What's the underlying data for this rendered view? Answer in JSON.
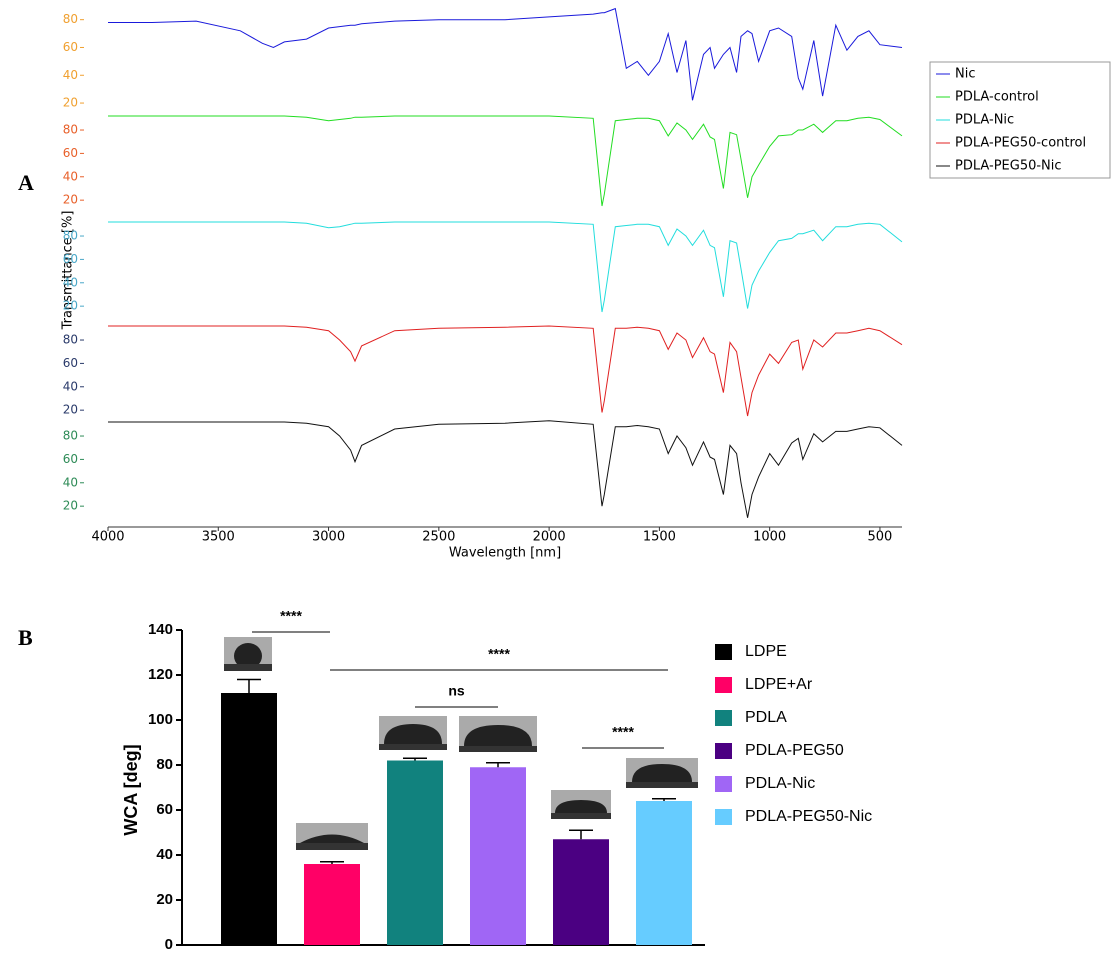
{
  "chart_data": [
    {
      "type": "line",
      "panel_label": "A",
      "xlabel": "Wavelength [nm]",
      "ylabel": "Transmittance [%]",
      "xlim": [
        4000,
        400
      ],
      "xticks": [
        4000,
        3500,
        3000,
        2500,
        2000,
        1500,
        1000,
        500
      ],
      "legend": "right",
      "x": [
        4000,
        3800,
        3600,
        3400,
        3300,
        3250,
        3200,
        3100,
        3000,
        2950,
        2900,
        2880,
        2850,
        2700,
        2500,
        2200,
        2000,
        1800,
        1760,
        1750,
        1700,
        1650,
        1600,
        1550,
        1500,
        1460,
        1420,
        1380,
        1350,
        1300,
        1270,
        1250,
        1210,
        1180,
        1150,
        1130,
        1100,
        1080,
        1050,
        1000,
        960,
        900,
        870,
        850,
        800,
        760,
        700,
        650,
        600,
        550,
        500,
        400
      ],
      "series": [
        {
          "name": "Nic",
          "color": "#1a1adb",
          "tick_color": "#f0a030",
          "ylim": [
            15,
            92
          ],
          "yticks": [
            20,
            40,
            60,
            80
          ],
          "values": [
            78,
            78,
            79,
            72,
            63,
            60,
            64,
            66,
            74,
            75,
            76,
            76,
            77,
            79,
            80,
            80,
            82,
            84,
            85,
            85,
            88,
            45,
            50,
            40,
            50,
            70,
            42,
            65,
            22,
            55,
            60,
            45,
            55,
            60,
            42,
            68,
            72,
            70,
            50,
            72,
            74,
            68,
            38,
            30,
            65,
            25,
            76,
            58,
            68,
            72,
            62,
            60
          ]
        },
        {
          "name": "PDLA-control",
          "color": "#22dd22",
          "tick_color": "#e8602a",
          "ylim": [
            15,
            92
          ],
          "yticks": [
            20,
            40,
            60,
            80
          ],
          "values": [
            92,
            92,
            92,
            92,
            92,
            92,
            92,
            91,
            88,
            89,
            90,
            91,
            91,
            92,
            92,
            92,
            92,
            90,
            15,
            25,
            88,
            89,
            90,
            90,
            88,
            75,
            86,
            80,
            72,
            85,
            74,
            72,
            30,
            78,
            76,
            55,
            22,
            40,
            50,
            66,
            75,
            76,
            80,
            80,
            85,
            78,
            88,
            88,
            90,
            91,
            89,
            75
          ]
        },
        {
          "name": "PDLA-Nic",
          "color": "#22dddd",
          "tick_color": "#4aa8c8",
          "ylim": [
            15,
            92
          ],
          "yticks": [
            20,
            40,
            60,
            80
          ],
          "values": [
            92,
            92,
            92,
            92,
            92,
            92,
            92,
            91,
            87,
            88,
            90,
            91,
            91,
            92,
            92,
            92,
            92,
            90,
            15,
            25,
            88,
            89,
            90,
            90,
            88,
            72,
            86,
            80,
            72,
            85,
            72,
            70,
            28,
            76,
            74,
            52,
            18,
            38,
            50,
            66,
            76,
            78,
            82,
            82,
            85,
            76,
            88,
            88,
            90,
            91,
            90,
            75
          ]
        },
        {
          "name": "PDLA-PEG50-control",
          "color": "#e02020",
          "tick_color": "#2a3a6a",
          "ylim": [
            15,
            92
          ],
          "yticks": [
            20,
            40,
            60,
            80
          ],
          "values": [
            92,
            92,
            92,
            92,
            92,
            92,
            92,
            91,
            88,
            80,
            70,
            62,
            75,
            88,
            90,
            91,
            92,
            90,
            18,
            28,
            90,
            90,
            91,
            90,
            88,
            72,
            86,
            80,
            65,
            82,
            70,
            68,
            35,
            78,
            70,
            48,
            15,
            35,
            50,
            68,
            60,
            78,
            80,
            55,
            80,
            74,
            86,
            86,
            88,
            90,
            88,
            76
          ]
        },
        {
          "name": "PDLA-PEG50-Nic",
          "color": "#111111",
          "tick_color": "#2e8b57",
          "ylim": [
            15,
            92
          ],
          "yticks": [
            20,
            40,
            60,
            80
          ],
          "values": [
            92,
            92,
            92,
            92,
            92,
            92,
            92,
            91,
            88,
            80,
            68,
            58,
            72,
            86,
            90,
            91,
            93,
            90,
            20,
            30,
            88,
            88,
            89,
            88,
            86,
            65,
            80,
            70,
            55,
            75,
            62,
            60,
            30,
            72,
            65,
            40,
            10,
            30,
            45,
            65,
            55,
            74,
            78,
            60,
            82,
            75,
            84,
            84,
            86,
            88,
            87,
            72
          ]
        }
      ]
    },
    {
      "type": "bar",
      "panel_label": "B",
      "ylabel": "WCA [deg]",
      "ylim": [
        0,
        140
      ],
      "yticks": [
        0,
        20,
        40,
        60,
        80,
        100,
        120,
        140
      ],
      "categories": [
        "LDPE",
        "LDPE+Ar",
        "PDLA",
        "PDLA-PEG50",
        "PDLA-Nic",
        "PDLA-PEG50-Nic"
      ],
      "values": [
        112,
        36,
        82,
        47,
        79,
        64
      ],
      "errors": [
        6,
        1,
        1,
        4,
        2,
        1
      ],
      "colors": [
        "#000000",
        "#ff0066",
        "#11827e",
        "#4b0082",
        "#a066f5",
        "#66ccff"
      ],
      "annotations": [
        "****",
        "****",
        "ns",
        "****"
      ],
      "legend": "right"
    }
  ]
}
